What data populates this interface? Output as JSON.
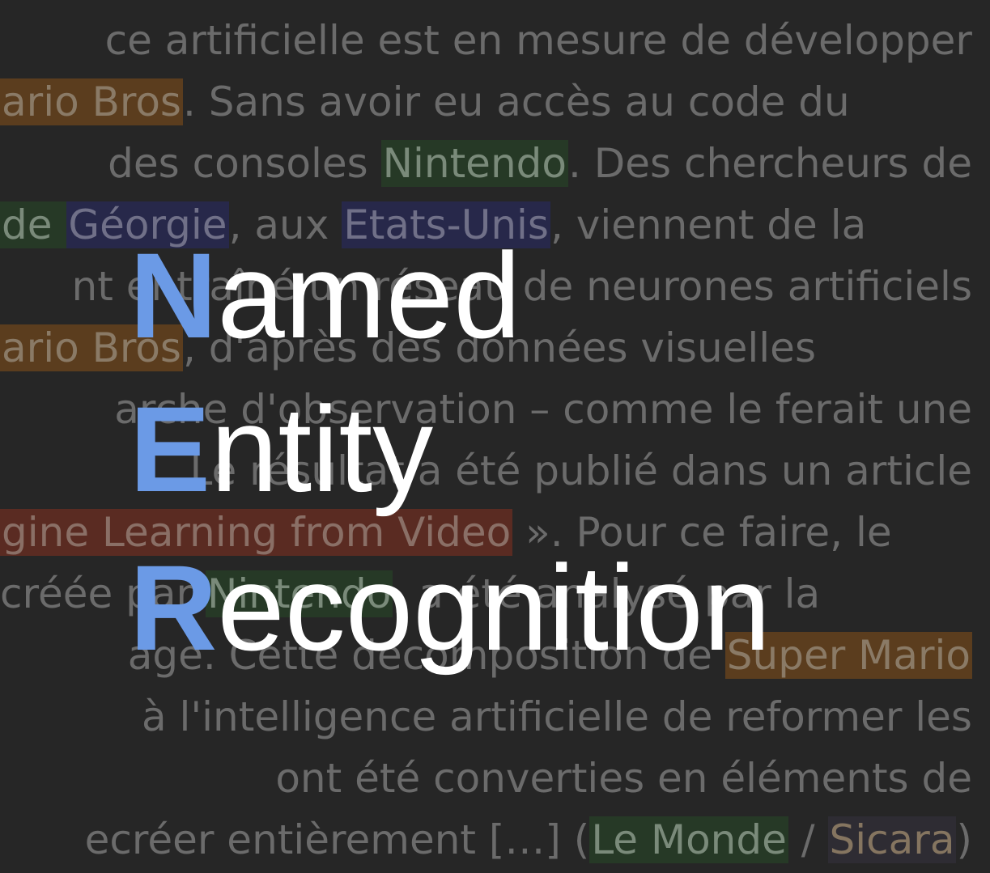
{
  "background_text": {
    "lines": [
      {
        "align": "right",
        "parts": [
          {
            "text": "ce artificielle est en mesure de développer"
          }
        ]
      },
      {
        "align": "left",
        "parts": [
          {
            "text": "ario Bros",
            "hl": "orange"
          },
          {
            "text": ". Sans avoir eu accès au code du"
          }
        ]
      },
      {
        "align": "right",
        "parts": [
          {
            "text": "des consoles "
          },
          {
            "text": "Nintendo",
            "hl": "green"
          },
          {
            "text": ". Des chercheurs de"
          }
        ]
      },
      {
        "align": "left",
        "parts": [
          {
            "text": " de ",
            "hl": "green"
          },
          {
            "text": "Géorgie",
            "hl": "blue"
          },
          {
            "text": ", aux "
          },
          {
            "text": "Etats-Unis",
            "hl": "blue"
          },
          {
            "text": ", viennent de la"
          }
        ]
      },
      {
        "align": "right",
        "parts": [
          {
            "text": "nt entraîné un réseau de neurones artificiels"
          }
        ]
      },
      {
        "align": "left",
        "parts": [
          {
            "text": "ario Bros",
            "hl": "orange"
          },
          {
            "text": ", d'après des données visuelles"
          }
        ]
      },
      {
        "align": "right",
        "parts": [
          {
            "text": "arche d'observation – comme le ferait une"
          }
        ]
      },
      {
        "align": "right",
        "parts": [
          {
            "text": "Le résultat a été publié dans un article"
          }
        ]
      },
      {
        "align": "left",
        "parts": [
          {
            "text": "gine Learning from Video",
            "hl": "red"
          },
          {
            "text": " ». Pour ce faire, le"
          }
        ]
      },
      {
        "align": "left",
        "parts": [
          {
            "text": " créée par "
          },
          {
            "text": "Nintendo",
            "hl": "green"
          },
          {
            "text": ", a été analysé par la"
          }
        ]
      },
      {
        "align": "right",
        "parts": [
          {
            "text": "age. Cette décomposition de "
          },
          {
            "text": "Super Mario",
            "hl": "orange"
          }
        ]
      },
      {
        "align": "right",
        "parts": [
          {
            "text": "à l'intelligence artificielle de reformer les"
          }
        ]
      },
      {
        "align": "right",
        "parts": [
          {
            "text": "ont été converties en éléments de"
          }
        ]
      },
      {
        "align": "right",
        "parts": [
          {
            "text": "ecréer entièrement […] ("
          },
          {
            "text": "Le Monde",
            "hl": "green"
          },
          {
            "text": " / "
          },
          {
            "text": "Sicara",
            "hl": "brownish"
          },
          {
            "text": ")"
          }
        ]
      }
    ]
  },
  "title": {
    "lines": [
      {
        "initial": "N",
        "rest": "amed"
      },
      {
        "initial": "E",
        "rest": "ntity"
      },
      {
        "initial": "R",
        "rest": "ecognition"
      }
    ]
  },
  "colors": {
    "background": "#262626",
    "accent_initial": "#6b9ae6",
    "title_text": "#ffffff",
    "background_text": "#6b6b6b",
    "highlight_orange": "#5b3d1e",
    "highlight_green": "#263926",
    "highlight_blue": "#27284a",
    "highlight_red": "#5a2b22"
  }
}
